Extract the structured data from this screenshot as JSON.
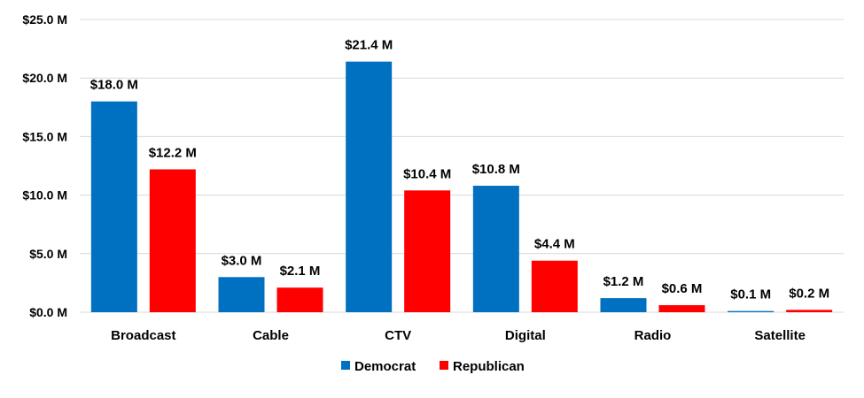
{
  "chart_data": {
    "type": "bar",
    "categories": [
      "Broadcast",
      "Cable",
      "CTV",
      "Digital",
      "Radio",
      "Satellite"
    ],
    "series": [
      {
        "name": "Democrat",
        "color": "#0070c0",
        "values": [
          18.0,
          3.0,
          21.4,
          10.8,
          1.2,
          0.1
        ],
        "labels": [
          "$18.0 M",
          "$3.0 M",
          "$21.4 M",
          "$10.8 M",
          "$1.2 M",
          "$0.1 M"
        ]
      },
      {
        "name": "Republican",
        "color": "#ff0000",
        "values": [
          12.2,
          2.1,
          10.4,
          4.4,
          0.6,
          0.2
        ],
        "labels": [
          "$12.2 M",
          "$2.1 M",
          "$10.4 M",
          "$4.4 M",
          "$0.6 M",
          "$0.2 M"
        ]
      }
    ],
    "y_ticks": [
      {
        "value": 0,
        "label": "$0.0 M"
      },
      {
        "value": 5,
        "label": "$5.0 M"
      },
      {
        "value": 10,
        "label": "$10.0 M"
      },
      {
        "value": 15,
        "label": "$15.0 M"
      },
      {
        "value": 20,
        "label": "$20.0 M"
      },
      {
        "value": 25,
        "label": "$25.0 M"
      }
    ],
    "ylim": [
      0,
      25
    ],
    "grid": true,
    "legend_position": "bottom"
  }
}
